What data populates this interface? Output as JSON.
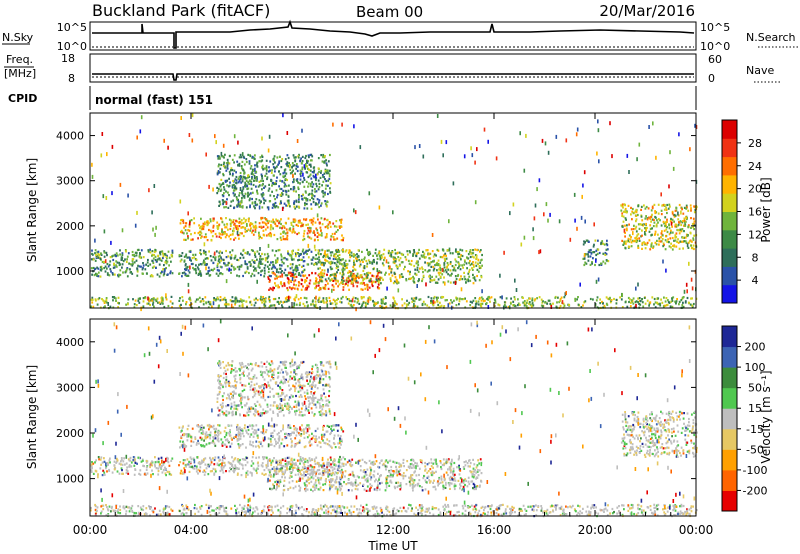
{
  "header": {
    "station": "Buckland Park (fitACF)",
    "beam": "Beam 00",
    "date": "20/Mar/2016"
  },
  "noise_panel": {
    "left_label": "N.Sky",
    "right_label": "N.Search",
    "tick_top": "10^5",
    "tick_bottom": "10^0"
  },
  "freq_panel": {
    "left_label_1": "Freq.",
    "left_label_2": "[MHz]",
    "left_tick_top": "18",
    "left_tick_bottom": "8",
    "right_label": "Nave",
    "right_tick_top": "60",
    "right_tick_bottom": "0"
  },
  "cpid": {
    "label": "CPID",
    "value": "normal (fast) 151"
  },
  "chart_data": [
    {
      "type": "heatmap",
      "name": "power",
      "ylabel": "Slant Range [km]",
      "ylim": [
        180,
        4500
      ],
      "yticks": [
        "1000",
        "2000",
        "3000",
        "4000"
      ],
      "colorbar": {
        "label": "Power [dB]",
        "ticks": [
          "4",
          "8",
          "12",
          "16",
          "20",
          "24",
          "28"
        ],
        "colors": [
          "#1414e6",
          "#2a52a8",
          "#2e6e5a",
          "#3d8a46",
          "#6fb43c",
          "#d2d21e",
          "#ffb400",
          "#ff6e00",
          "#f03214",
          "#dc0000"
        ]
      },
      "echo_regions": [
        {
          "t0": 0.0,
          "t1": 24.0,
          "r0": 200,
          "r1": 450,
          "level": 0.45
        },
        {
          "t0": 0.0,
          "t1": 10.0,
          "r0": 1150,
          "r1": 1500,
          "level": 0.35
        },
        {
          "t0": 0.0,
          "t1": 8.5,
          "r0": 900,
          "r1": 1150,
          "level": 0.3
        },
        {
          "t0": 3.5,
          "t1": 10.0,
          "r0": 1700,
          "r1": 2200,
          "level": 0.65
        },
        {
          "t0": 7.0,
          "t1": 11.5,
          "r0": 600,
          "r1": 1000,
          "level": 0.8
        },
        {
          "t0": 9.0,
          "t1": 15.5,
          "r0": 750,
          "r1": 1500,
          "level": 0.45
        },
        {
          "t0": 5.0,
          "t1": 9.5,
          "r0": 2400,
          "r1": 3600,
          "level": 0.3
        },
        {
          "t0": 19.5,
          "t1": 20.5,
          "r0": 1150,
          "r1": 1700,
          "level": 0.3
        },
        {
          "t0": 21.0,
          "t1": 24.0,
          "r0": 1500,
          "r1": 2500,
          "level": 0.55
        }
      ]
    },
    {
      "type": "heatmap",
      "name": "velocity",
      "ylabel": "Slant Range [km]",
      "ylim": [
        180,
        4500
      ],
      "yticks": [
        "1000",
        "2000",
        "3000",
        "4000"
      ],
      "colorbar": {
        "label": "Velocity [m s⁻¹]",
        "ticks": [
          "-200",
          "-100",
          "-50",
          "-15",
          "15",
          "50",
          "100",
          "200"
        ],
        "colors": [
          "#e60000",
          "#ff6400",
          "#ffa000",
          "#e6c864",
          "#bebebe",
          "#50c850",
          "#3c8c3c",
          "#3c64b4",
          "#1e2896"
        ]
      },
      "echo_regions": [
        {
          "t0": 0.0,
          "t1": 24.0,
          "r0": 200,
          "r1": 450,
          "level": 0.4
        },
        {
          "t0": 0.0,
          "t1": 10.0,
          "r0": 1100,
          "r1": 1500,
          "level": 0.5
        },
        {
          "t0": 3.5,
          "t1": 10.0,
          "r0": 1700,
          "r1": 2200,
          "level": 0.5
        },
        {
          "t0": 7.0,
          "t1": 15.5,
          "r0": 750,
          "r1": 1450,
          "level": 0.5
        },
        {
          "t0": 5.0,
          "t1": 9.5,
          "r0": 2400,
          "r1": 3600,
          "level": 0.5
        },
        {
          "t0": 21.0,
          "t1": 24.0,
          "r0": 1500,
          "r1": 2500,
          "level": 0.5
        }
      ]
    }
  ],
  "x_axis": {
    "title": "Time UT",
    "ticks": [
      "00:00",
      "04:00",
      "08:00",
      "12:00",
      "16:00",
      "20:00",
      "00:00"
    ],
    "range_hours": [
      0,
      24
    ]
  }
}
